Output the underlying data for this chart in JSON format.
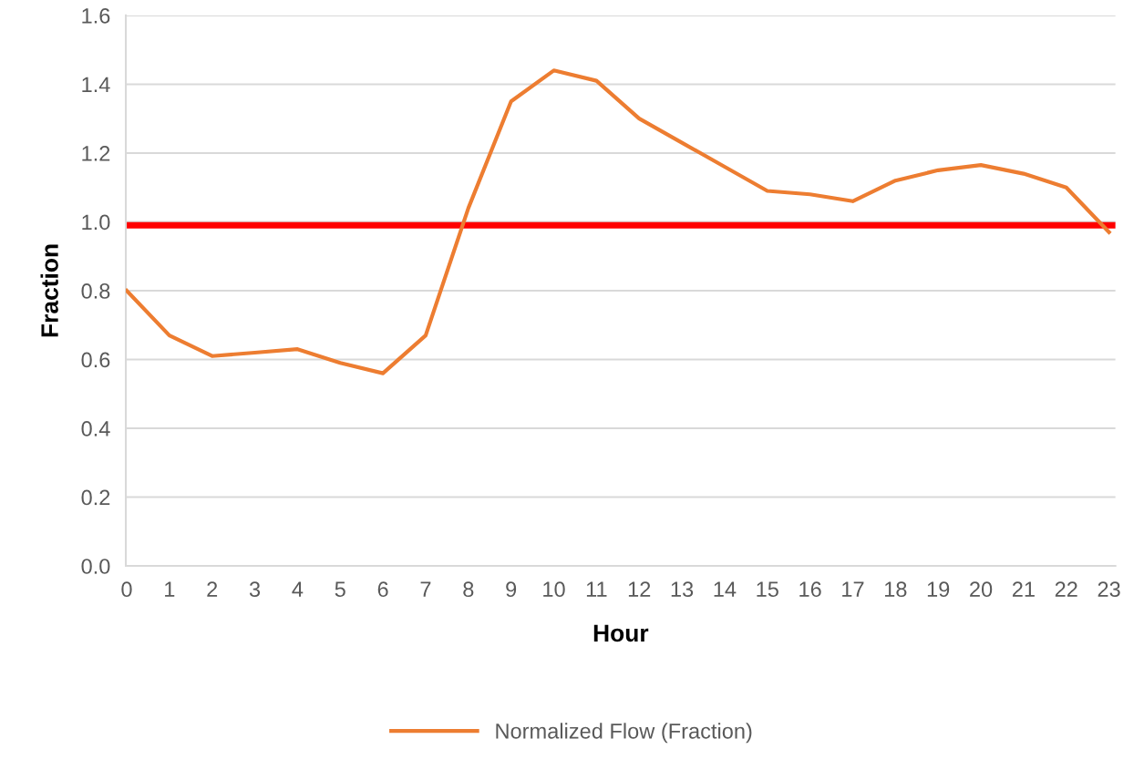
{
  "chart_data": {
    "type": "line",
    "xlabel": "Hour",
    "ylabel": "Fraction",
    "categories": [
      "0",
      "1",
      "2",
      "3",
      "4",
      "5",
      "6",
      "7",
      "8",
      "9",
      "10",
      "11",
      "12",
      "13",
      "14",
      "15",
      "16",
      "17",
      "18",
      "19",
      "20",
      "21",
      "22",
      "23"
    ],
    "series": [
      {
        "name": "Normalized Flow (Fraction)",
        "color": "#ed7d31",
        "values": [
          0.8,
          0.67,
          0.61,
          0.62,
          0.63,
          0.59,
          0.56,
          0.67,
          1.04,
          1.35,
          1.44,
          1.41,
          1.3,
          1.23,
          1.16,
          1.09,
          1.08,
          1.06,
          1.12,
          1.15,
          1.165,
          1.14,
          1.1,
          0.97
        ]
      }
    ],
    "ref_lines": [
      {
        "axis": "y",
        "value": 0.99,
        "color": "#ff0000",
        "line_style": "solid"
      }
    ],
    "ylim": [
      0,
      1.6
    ],
    "yticks": [
      {
        "value": 0,
        "label": "0.0"
      },
      {
        "value": 0.2,
        "label": "0.2"
      },
      {
        "value": 0.4,
        "label": "0.4"
      },
      {
        "value": 0.6,
        "label": "0.6"
      },
      {
        "value": 0.8,
        "label": "0.8"
      },
      {
        "value": 1.0,
        "label": "1.0"
      },
      {
        "value": 1.2,
        "label": "1.2"
      },
      {
        "value": 1.4,
        "label": "1.4"
      },
      {
        "value": 1.6,
        "label": "1.6"
      }
    ],
    "grid": "y",
    "legend": "bottom",
    "marker": "none",
    "line_style": "solid"
  }
}
